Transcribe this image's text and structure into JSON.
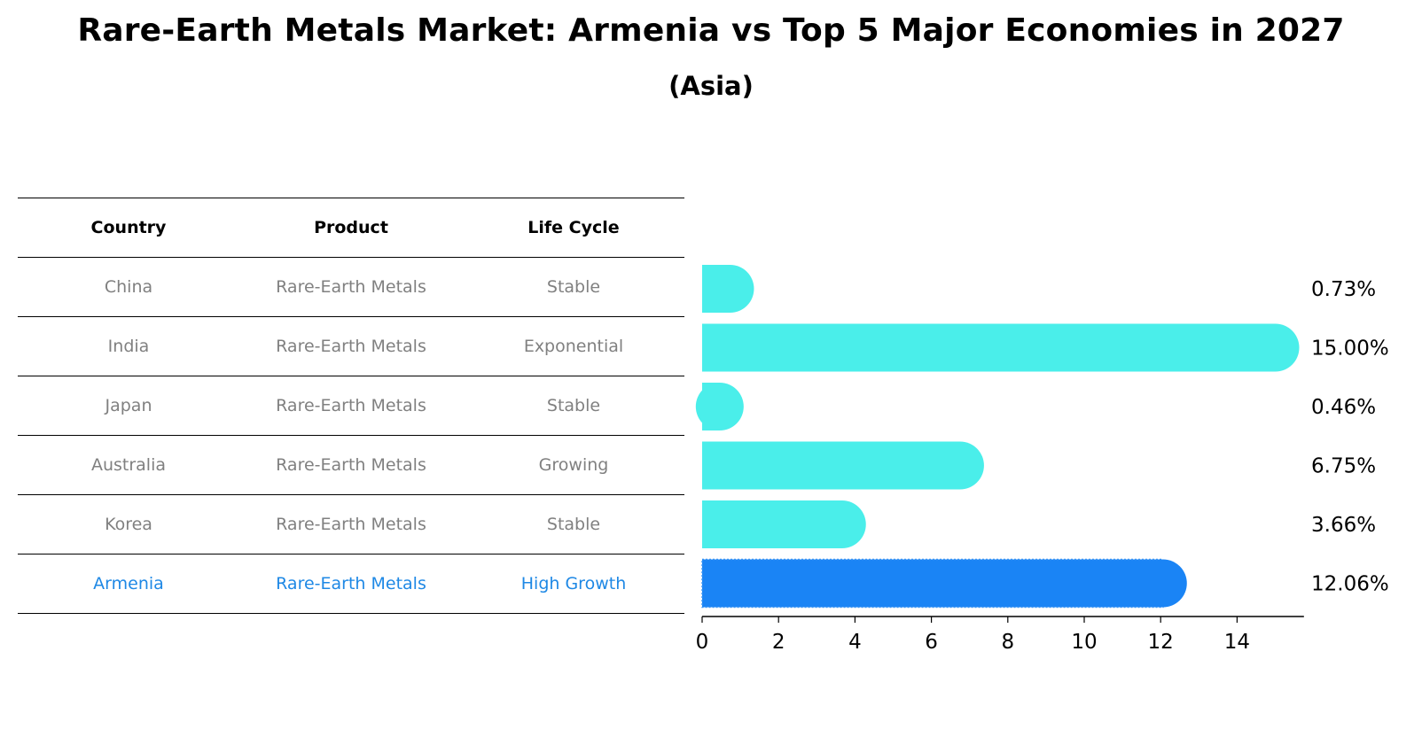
{
  "title": "Rare-Earth Metals Market: Armenia vs Top 5 Major Economies in 2027",
  "subtitle": "(Asia)",
  "table": {
    "headers": [
      "Country",
      "Product",
      "Life Cycle"
    ],
    "rows": [
      {
        "country": "China",
        "product": "Rare-Earth Metals",
        "life_cycle": "Stable"
      },
      {
        "country": "India",
        "product": "Rare-Earth Metals",
        "life_cycle": "Exponential"
      },
      {
        "country": "Japan",
        "product": "Rare-Earth Metals",
        "life_cycle": "Stable"
      },
      {
        "country": "Australia",
        "product": "Rare-Earth Metals",
        "life_cycle": "Growing"
      },
      {
        "country": "Korea",
        "product": "Rare-Earth Metals",
        "life_cycle": "Stable"
      },
      {
        "country": "Armenia",
        "product": "Rare-Earth Metals",
        "life_cycle": "High Growth"
      }
    ]
  },
  "colors": {
    "bar": "#4aeeea",
    "highlight_bar": "#1a84f5",
    "highlight_text": "#1e88e5",
    "muted_text": "#808080"
  },
  "chart_data": {
    "type": "bar",
    "orientation": "horizontal",
    "categories": [
      "China",
      "India",
      "Japan",
      "Australia",
      "Korea",
      "Armenia"
    ],
    "values": [
      0.73,
      15.0,
      0.46,
      6.75,
      3.66,
      12.06
    ],
    "value_labels": [
      "0.73%",
      "15.00%",
      "0.46%",
      "6.75%",
      "3.66%",
      "12.06%"
    ],
    "highlight": "Armenia",
    "xticks": [
      0,
      2,
      4,
      6,
      8,
      10,
      12,
      14
    ],
    "xlim": [
      0,
      15.75
    ],
    "xlabel": "",
    "ylabel": "",
    "grid": false
  }
}
